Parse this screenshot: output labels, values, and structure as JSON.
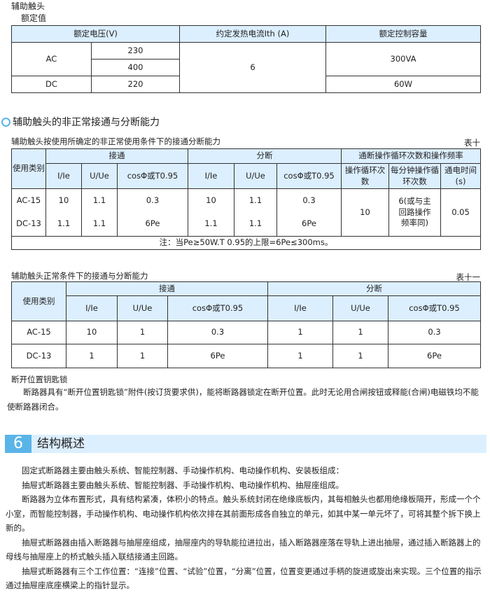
{
  "aux": {
    "title": "辅助触头",
    "rated_title": "额定值"
  },
  "table_rated": {
    "headers": [
      "额定电压(V)",
      "约定发热电流Ith (A)",
      "额定控制容量"
    ],
    "ac": "AC",
    "dc": "DC",
    "v230": "230",
    "v400": "400",
    "v220": "220",
    "ith": "6",
    "cap_ac": "300VA",
    "cap_dc": "60W"
  },
  "section_abnormal": "辅助触头的非正常接通与分断能力",
  "table10": {
    "caption": "辅助触头按使用所确定的非正常使用条件下的接通分断能力",
    "label": "表十",
    "h_use": "使用类别",
    "h_make": "接通",
    "h_break": "分断",
    "h_ops": "通断操作循环次数和操作频率",
    "h_ie": "I/Ie",
    "h_ue": "U/Ue",
    "h_cos": "cosΦ或T0.95",
    "h_cycles": "操作循环次数",
    "h_permin": "每分钟操作循环次数",
    "h_time": "通电时间(s)",
    "rows": [
      {
        "cat": "AC-15",
        "m_ie": "10",
        "m_ue": "1.1",
        "m_cos": "0.3",
        "b_ie": "10",
        "b_ue": "1.1",
        "b_cos": "0.3"
      },
      {
        "cat": "DC-13",
        "m_ie": "1.1",
        "m_ue": "1.1",
        "m_cos": "6Pe",
        "b_ie": "1.1",
        "b_ue": "1.1",
        "b_cos": "6Pe"
      }
    ],
    "cycles": "10",
    "permin": "6(或与主回路操作频率同)",
    "time": "0.05",
    "note": "注：当Pe≥50W.T 0.95的上限=6Pe≤300ms。"
  },
  "table11": {
    "caption": "辅助触头正常条件下的接通与分断能力",
    "label": "表十一",
    "rows": [
      {
        "cat": "AC-15",
        "m_ie": "10",
        "m_ue": "1",
        "m_cos": "0.3",
        "b_ie": "1",
        "b_ue": "1",
        "b_cos": "0.3"
      },
      {
        "cat": "DC-13",
        "m_ie": "1",
        "m_ue": "1",
        "m_cos": "6Pe",
        "b_ie": "1",
        "b_ue": "1",
        "b_cos": "6Pe"
      }
    ]
  },
  "lock": {
    "title": "断开位置钥匙锁",
    "text": "断路器具有“断开位置钥匙锁”附件(按订货要求供)，能将断路器锁定在断开位置。此时无论用合闸按钮或释能(合闸)电磁铁均不能使断路器闭合。"
  },
  "section6": {
    "number": "6",
    "title": "结构概述",
    "paragraphs": [
      "固定式断路器主要由触头系统、智能控制器、手动操作机构、电动操作机构、安装板组成：",
      "抽屉式断路器主要由触头系统、智能控制器、手动操作机构、电动操作机构、抽屉座组成。",
      "断路器为立体布置形式，具有结构紧凑，体积小的特点。触头系统封闭在绝缘底板内，其每相触头也都用绝缘板隔开，形成一个个小室，而智能控制器，手动操作机构、电动操作机构依次排在其前面形成各自独立的单元，如其中某一单元坏了，可将其整个拆下换上新的。",
      "抽屉式断路器由插入断路器与抽屉座组成，抽屉座内的导轨能拉进拉出，插入断路器座落在导轨上进出抽屉，通过插入断路器上的母线与抽屉座上的桥式触头插入联结接通主回路。",
      "抽屉式断路器有三个工作位置：“连接”位置、“试验”位置，“分离”位置，位置变更通过手柄的旋进或旋出来实现。三个位置的指示通过抽屉座底座横梁上的指针显示。"
    ]
  },
  "colors": {
    "header_bg": "#dcefff",
    "accent": "#5ab4e8"
  }
}
